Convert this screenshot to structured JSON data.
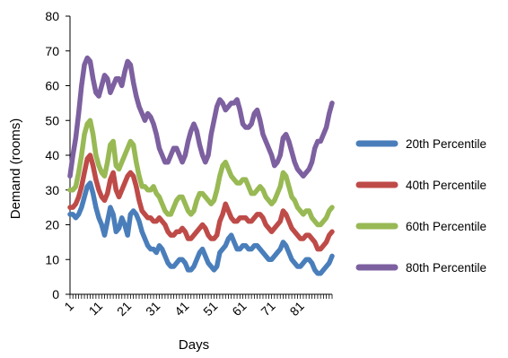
{
  "chart_data": {
    "type": "line",
    "title": "",
    "xlabel": "Days",
    "ylabel": "Demand (rooms)",
    "ylim": [
      0,
      80
    ],
    "yticks": [
      0,
      10,
      20,
      30,
      40,
      50,
      60,
      70,
      80
    ],
    "xticks": [
      1,
      11,
      21,
      31,
      41,
      51,
      61,
      71,
      81
    ],
    "xlim": [
      1,
      92
    ],
    "grid": false,
    "legend_position": "right",
    "x": [
      1,
      2,
      3,
      4,
      5,
      6,
      7,
      8,
      9,
      10,
      11,
      12,
      13,
      14,
      15,
      16,
      17,
      18,
      19,
      20,
      21,
      22,
      23,
      24,
      25,
      26,
      27,
      28,
      29,
      30,
      31,
      32,
      33,
      34,
      35,
      36,
      37,
      38,
      39,
      40,
      41,
      42,
      43,
      44,
      45,
      46,
      47,
      48,
      49,
      50,
      51,
      52,
      53,
      54,
      55,
      56,
      57,
      58,
      59,
      60,
      61,
      62,
      63,
      64,
      65,
      66,
      67,
      68,
      69,
      70,
      71,
      72,
      73,
      74,
      75,
      76,
      77,
      78,
      79,
      80,
      81,
      82,
      83,
      84,
      85,
      86,
      87,
      88,
      89,
      90,
      91,
      92
    ],
    "series": [
      {
        "name": "20th Percentile",
        "color": "#4a7ebb",
        "values": [
          23,
          23,
          22,
          23,
          25,
          28,
          31,
          32,
          29,
          25,
          22,
          20,
          17,
          21,
          25,
          23,
          18,
          19,
          22,
          20,
          17,
          23,
          24,
          23,
          21,
          18,
          16,
          14,
          13,
          13,
          12,
          14,
          13,
          11,
          9,
          8,
          8,
          9,
          10,
          10,
          9,
          7,
          7,
          8,
          10,
          12,
          13,
          11,
          9,
          8,
          7,
          8,
          12,
          13,
          14,
          16,
          17,
          15,
          13,
          13,
          14,
          14,
          13,
          13,
          14,
          14,
          13,
          12,
          11,
          10,
          10,
          11,
          12,
          13,
          15,
          14,
          12,
          10,
          9,
          8,
          8,
          9,
          10,
          10,
          9,
          7,
          6,
          6,
          7,
          8,
          9,
          11
        ],
        "values_note": ""
      },
      {
        "name": "40th Percentile",
        "color": "#be4b48",
        "values": [
          25,
          25,
          26,
          28,
          31,
          35,
          39,
          40,
          37,
          33,
          30,
          28,
          27,
          29,
          33,
          35,
          30,
          28,
          30,
          32,
          34,
          35,
          34,
          31,
          27,
          24,
          23,
          22,
          22,
          21,
          21,
          22,
          21,
          20,
          18,
          17,
          17,
          18,
          18,
          19,
          18,
          16,
          16,
          17,
          18,
          19,
          20,
          19,
          17,
          16,
          16,
          17,
          21,
          23,
          26,
          24,
          22,
          21,
          21,
          22,
          22,
          22,
          21,
          21,
          22,
          23,
          23,
          22,
          20,
          19,
          18,
          19,
          20,
          21,
          24,
          23,
          21,
          19,
          18,
          17,
          16,
          16,
          17,
          17,
          16,
          15,
          13,
          13,
          14,
          15,
          17,
          18
        ],
        "values_note": ""
      },
      {
        "name": "60th Percentile",
        "color": "#98b954",
        "values": [
          30,
          30,
          31,
          35,
          40,
          46,
          49,
          50,
          46,
          40,
          37,
          35,
          34,
          38,
          43,
          44,
          37,
          36,
          38,
          40,
          42,
          44,
          43,
          38,
          34,
          31,
          31,
          30,
          30,
          31,
          29,
          28,
          26,
          24,
          23,
          23,
          25,
          27,
          28,
          28,
          26,
          24,
          23,
          24,
          27,
          29,
          29,
          28,
          27,
          26,
          27,
          30,
          34,
          37,
          38,
          36,
          34,
          33,
          32,
          32,
          33,
          33,
          31,
          29,
          29,
          30,
          31,
          30,
          28,
          27,
          26,
          27,
          29,
          31,
          35,
          34,
          31,
          28,
          27,
          25,
          24,
          23,
          24,
          24,
          22,
          21,
          20,
          20,
          21,
          22,
          24,
          25
        ],
        "values_note": ""
      },
      {
        "name": "80th Percentile",
        "color": "#7d60a0",
        "values": [
          34,
          40,
          45,
          52,
          60,
          66,
          68,
          67,
          62,
          58,
          57,
          60,
          63,
          62,
          58,
          60,
          62,
          62,
          60,
          64,
          67,
          66,
          61,
          57,
          54,
          52,
          50,
          52,
          51,
          49,
          46,
          42,
          40,
          38,
          38,
          40,
          42,
          42,
          40,
          38,
          40,
          44,
          47,
          49,
          47,
          43,
          40,
          38,
          40,
          46,
          50,
          54,
          56,
          55,
          53,
          54,
          55,
          55,
          56,
          53,
          49,
          48,
          48,
          49,
          52,
          53,
          50,
          46,
          44,
          42,
          40,
          37,
          38,
          40,
          45,
          46,
          44,
          41,
          38,
          36,
          35,
          34,
          35,
          36,
          38,
          42,
          44,
          44,
          46,
          48,
          52,
          55
        ],
        "values_note": ""
      }
    ]
  }
}
